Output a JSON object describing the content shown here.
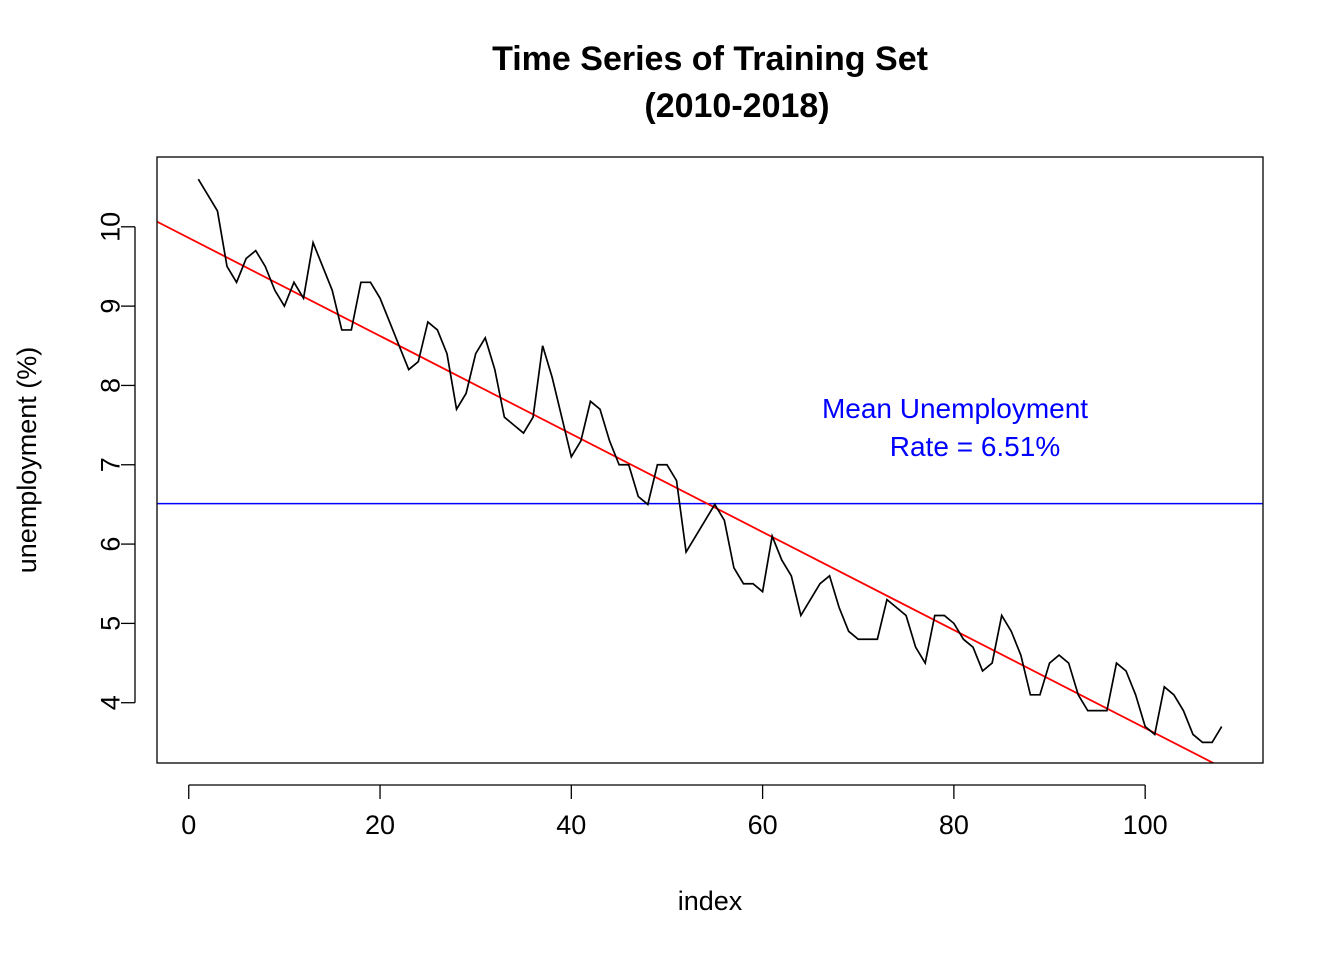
{
  "chart_data": {
    "type": "line",
    "title_lines": [
      "Time Series of Training Set",
      "(2010-2018)"
    ],
    "xlabel": "index",
    "ylabel": "unemployment (%)",
    "xlim": [
      -3.32,
      112.32
    ],
    "ylim": [
      3.24,
      10.88
    ],
    "x_ticks": [
      0,
      20,
      40,
      60,
      80,
      100
    ],
    "y_ticks": [
      4,
      5,
      6,
      7,
      8,
      9,
      10
    ],
    "grid": false,
    "legend": "none",
    "series": [
      {
        "color": "#000000",
        "x": [
          1,
          2,
          3,
          4,
          5,
          6,
          7,
          8,
          9,
          10,
          11,
          12,
          13,
          14,
          15,
          16,
          17,
          18,
          19,
          20,
          21,
          22,
          23,
          24,
          25,
          26,
          27,
          28,
          29,
          30,
          31,
          32,
          33,
          34,
          35,
          36,
          37,
          38,
          39,
          40,
          41,
          42,
          43,
          44,
          45,
          46,
          47,
          48,
          49,
          50,
          51,
          52,
          53,
          54,
          55,
          56,
          57,
          58,
          59,
          60,
          61,
          62,
          63,
          64,
          65,
          66,
          67,
          68,
          69,
          70,
          71,
          72,
          73,
          74,
          75,
          76,
          77,
          78,
          79,
          80,
          81,
          82,
          83,
          84,
          85,
          86,
          87,
          88,
          89,
          90,
          91,
          92,
          93,
          94,
          95,
          96,
          97,
          98,
          99,
          100,
          101,
          102,
          103,
          104,
          105,
          106,
          107,
          108
        ],
        "y": [
          10.6,
          10.4,
          10.2,
          9.5,
          9.3,
          9.6,
          9.7,
          9.5,
          9.2,
          9.0,
          9.3,
          9.1,
          9.8,
          9.5,
          9.2,
          8.7,
          8.7,
          9.3,
          9.3,
          9.1,
          8.8,
          8.5,
          8.2,
          8.3,
          8.8,
          8.7,
          8.4,
          7.7,
          7.9,
          8.4,
          8.6,
          8.2,
          7.6,
          7.5,
          7.4,
          7.6,
          8.5,
          8.1,
          7.6,
          7.1,
          7.3,
          7.8,
          7.7,
          7.3,
          7.0,
          7.0,
          6.6,
          6.5,
          7.0,
          7.0,
          6.8,
          5.9,
          6.1,
          6.3,
          6.5,
          6.3,
          5.7,
          5.5,
          5.5,
          5.4,
          6.1,
          5.8,
          5.6,
          5.1,
          5.3,
          5.5,
          5.6,
          5.2,
          4.9,
          4.8,
          4.8,
          4.8,
          5.3,
          5.2,
          5.1,
          4.7,
          4.5,
          5.1,
          5.1,
          5.0,
          4.8,
          4.7,
          4.4,
          4.5,
          5.1,
          4.9,
          4.6,
          4.1,
          4.1,
          4.5,
          4.6,
          4.5,
          4.1,
          3.9,
          3.9,
          3.9,
          4.5,
          4.4,
          4.1,
          3.7,
          3.6,
          4.2,
          4.1,
          3.9,
          3.6,
          3.5,
          3.5,
          3.7
        ]
      }
    ],
    "trend_line": {
      "color": "#ff0000",
      "intercept": 9.86,
      "slope": -0.0618
    },
    "mean_line": {
      "color": "#0000ff",
      "y": 6.51
    },
    "annotation": {
      "lines": [
        "Mean Unemployment",
        "Rate = 6.51%"
      ],
      "color": "#0000ff"
    }
  }
}
